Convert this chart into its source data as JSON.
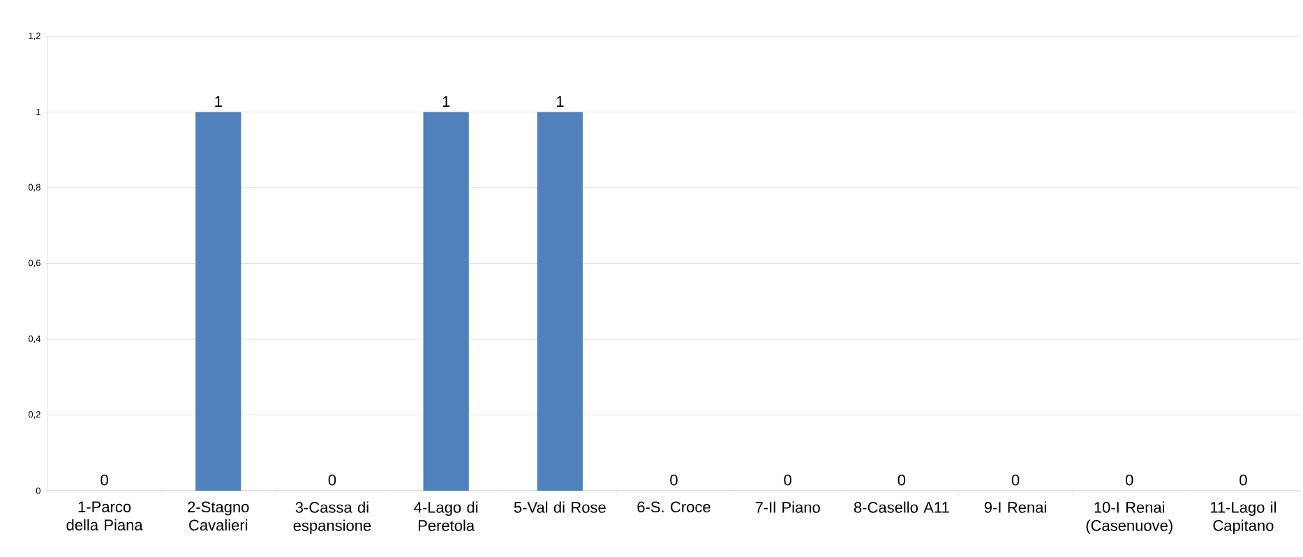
{
  "chart_data": {
    "type": "bar",
    "categories": [
      "1-Parco della Piana",
      "2-Stagno Cavalieri",
      "3-Cassa di espansione",
      "4-Lago di Peretola",
      "5-Val di Rose",
      "6-S. Croce",
      "7-Il Piano",
      "8-Casello A11",
      "9-I Renai",
      "10-I Renai (Casenuove)",
      "11-Lago il Capitano"
    ],
    "values": [
      0,
      1,
      0,
      1,
      1,
      0,
      0,
      0,
      0,
      0,
      0
    ],
    "color": "#4f81bd",
    "ylim": [
      0,
      1.2
    ],
    "yticks": [
      {
        "value": 0,
        "label": "0"
      },
      {
        "value": 0.2,
        "label": "0,2"
      },
      {
        "value": 0.4,
        "label": "0,4"
      },
      {
        "value": 0.6,
        "label": "0,6"
      },
      {
        "value": 0.8,
        "label": "0,8"
      },
      {
        "value": 1,
        "label": "1"
      },
      {
        "value": 1.2,
        "label": "1,2"
      }
    ],
    "grid": "y",
    "data_labels": true
  }
}
